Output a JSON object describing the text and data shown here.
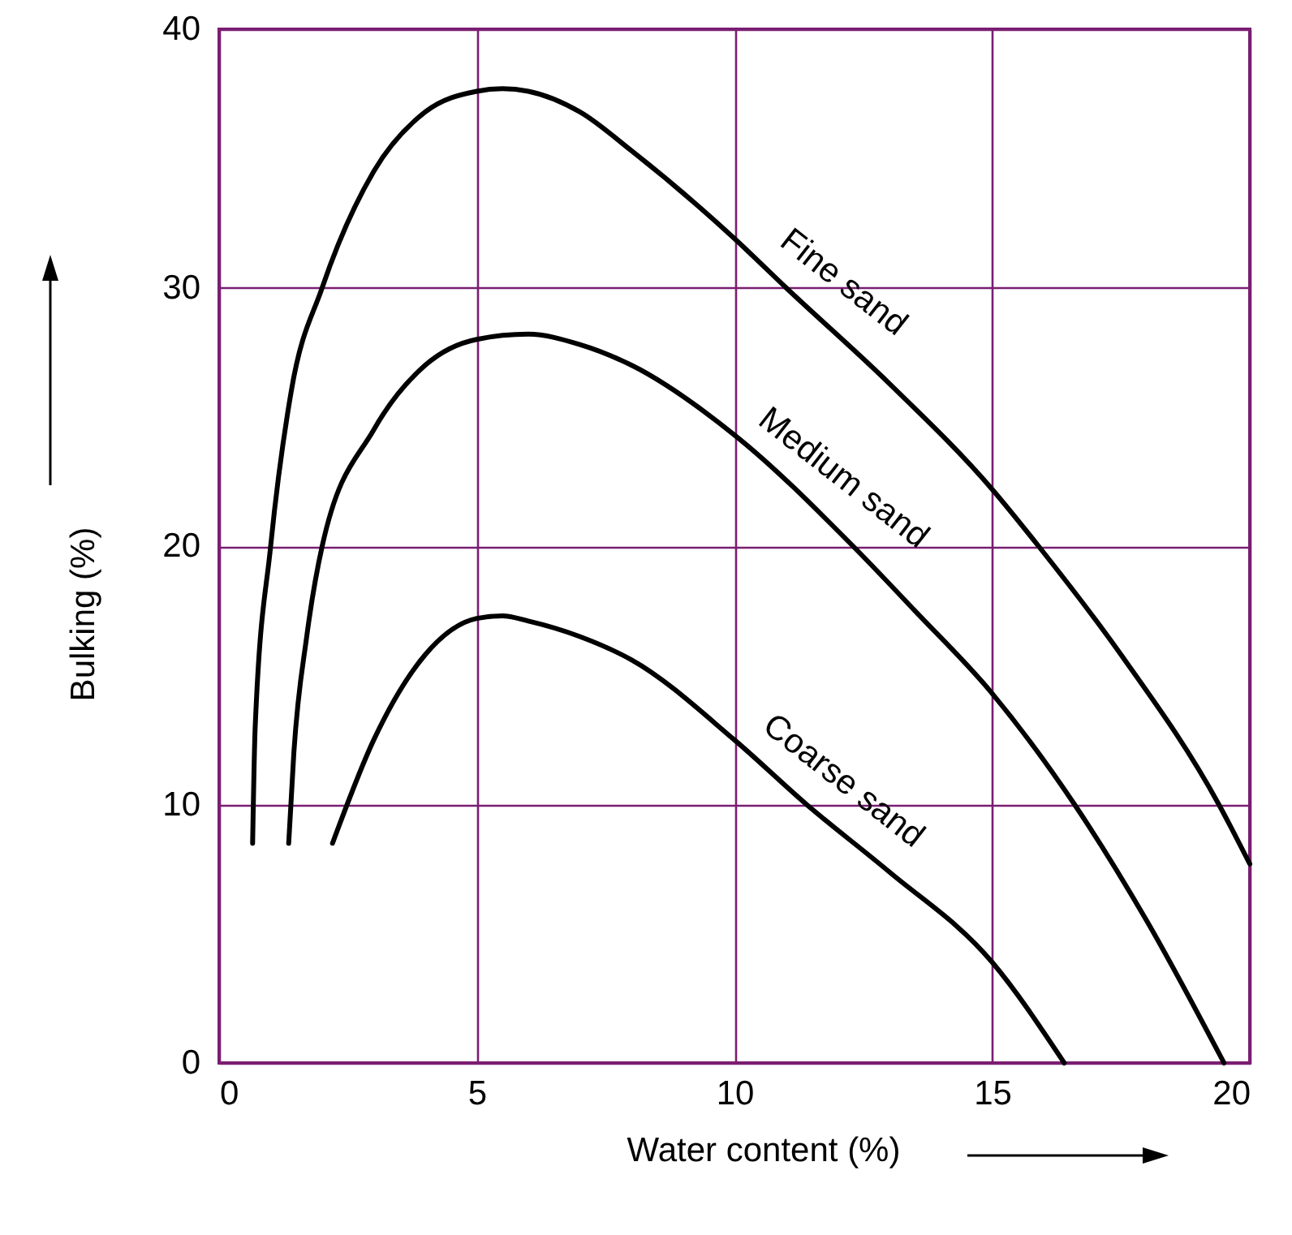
{
  "chart_data": {
    "type": "line",
    "xlabel": "Water content (%)",
    "ylabel": "Bulking (%)",
    "xlim": [
      0,
      20
    ],
    "xticks": [
      0,
      5,
      10,
      15,
      20
    ],
    "ylim": [
      0,
      40
    ],
    "yticks": [
      0,
      10,
      20,
      30,
      40
    ],
    "grid": true,
    "legend": false,
    "marker": "none",
    "line_style": "solid",
    "series": [
      {
        "name": "Fine sand",
        "color": "#000000",
        "x": [
          0.65,
          0.7,
          1.0,
          1.4,
          2.0,
          3.0,
          4.0,
          5.0,
          5.5,
          6.0,
          7.0,
          8.0,
          10.0,
          11.0,
          13.0,
          15.0,
          15.9,
          17.5,
          19.4,
          20.0
        ],
        "values": [
          8.5,
          13,
          20,
          26,
          30,
          34.5,
          36.8,
          37.6,
          37.7,
          37.6,
          36.8,
          35.3,
          31.9,
          30,
          26.3,
          22.2,
          20,
          15.8,
          10,
          7.7
        ]
      },
      {
        "name": "Medium sand",
        "color": "#000000",
        "x": [
          1.35,
          1.45,
          1.7,
          2.0,
          3.0,
          4.0,
          5.0,
          6.0,
          7.0,
          8.0,
          10.0,
          12.3,
          13.5,
          15.0,
          16.6,
          18.0,
          19.5
        ],
        "values": [
          8.5,
          12,
          16.5,
          20,
          24.5,
          27,
          28,
          28.2,
          27.8,
          27,
          24.3,
          20,
          17.5,
          14.3,
          10,
          5.5,
          0
        ]
      },
      {
        "name": "Coarse sand",
        "color": "#000000",
        "x": [
          2.2,
          3.0,
          4.0,
          5.0,
          5.5,
          6.0,
          7.0,
          8.0,
          10.0,
          11.4,
          13.0,
          15.0,
          16.4
        ],
        "values": [
          8.5,
          12.5,
          15.8,
          17.2,
          17.3,
          17.1,
          16.5,
          15.6,
          12.5,
          10,
          7.4,
          3.9,
          0
        ]
      }
    ]
  }
}
